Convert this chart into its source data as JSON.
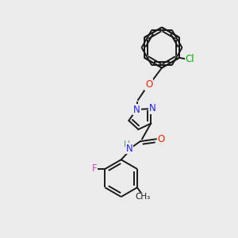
{
  "background_color": "#ebebeb",
  "bond_color": "#1a1a1a",
  "bond_width": 1.4,
  "atoms": {
    "Cl": {
      "color": "#00aa00"
    },
    "O": {
      "color": "#ee2200"
    },
    "N": {
      "color": "#2222ee"
    },
    "F": {
      "color": "#cc44bb"
    },
    "C": {
      "color": "#1a1a1a"
    },
    "H": {
      "color": "#4a8a8a"
    }
  },
  "fig_width": 3.0,
  "fig_height": 3.0,
  "dpi": 100,
  "xlim": [
    0,
    10
  ],
  "ylim": [
    0,
    10
  ]
}
